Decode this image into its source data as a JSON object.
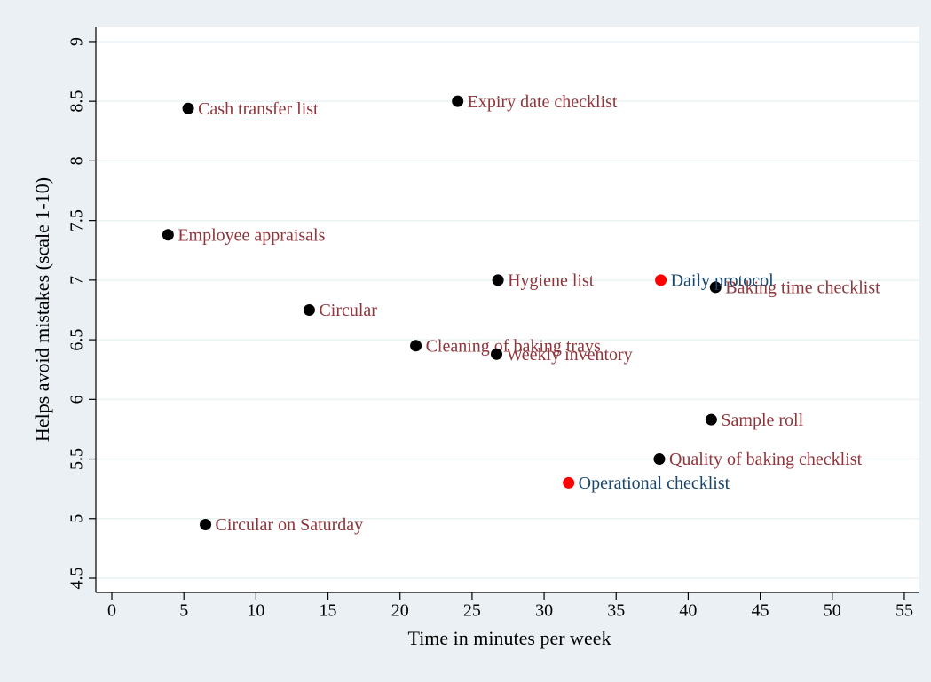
{
  "chart_data": {
    "type": "scatter",
    "x_label": "Time in minutes per week",
    "y_label": "Helps avoid mistakes (scale 1-10)",
    "xlim": [
      -1.11,
      56.05
    ],
    "ylim": [
      4.381,
      9.126
    ],
    "xticks": [
      0,
      5,
      10,
      15,
      20,
      25,
      30,
      35,
      40,
      45,
      50,
      55
    ],
    "yticks": [
      4.5,
      5,
      5.5,
      6,
      6.5,
      7,
      7.5,
      8,
      8.5,
      9
    ],
    "grid": true,
    "series": [
      {
        "color": "#000000",
        "label_color": "#90353b",
        "labels": [
          "Cash transfer list",
          "Expiry date checklist",
          "Employee appraisals",
          "Hygiene list",
          "Baking time checklist",
          "Circular",
          "Cleaning of baking trays",
          "Weekly inventory",
          "Sample roll",
          "Quality of baking checklist",
          "Circular on Saturday"
        ],
        "x": [
          5.3,
          24.0,
          3.9,
          26.8,
          41.9,
          13.7,
          21.1,
          26.7,
          41.6,
          38.0,
          6.5
        ],
        "values": [
          8.44,
          8.5,
          7.38,
          7.0,
          6.94,
          6.75,
          6.45,
          6.38,
          5.83,
          5.5,
          4.95
        ]
      },
      {
        "color": "#ff0000",
        "label_color": "#1a476f",
        "labels": [
          "Daily protocol",
          "Operational checklist"
        ],
        "x": [
          38.1,
          31.7
        ],
        "values": [
          7.0,
          5.3
        ]
      }
    ]
  }
}
